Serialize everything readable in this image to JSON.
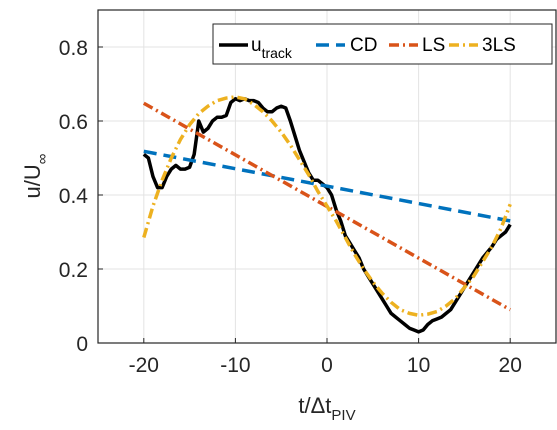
{
  "chart_data": {
    "type": "line",
    "xlim": [
      -25,
      25
    ],
    "ylim": [
      0,
      0.9
    ],
    "xticks": [
      -20,
      -10,
      0,
      10,
      20
    ],
    "yticks": [
      0,
      0.2,
      0.4,
      0.6,
      0.8
    ],
    "xtick_labels": [
      "-20",
      "-10",
      "0",
      "10",
      "20"
    ],
    "ytick_labels": [
      "0",
      "0.2",
      "0.4",
      "0.6",
      "0.8"
    ],
    "xlabel": {
      "main": "t/Δt",
      "sub": "PIV"
    },
    "ylabel": {
      "main": "u/U",
      "sub": "∞"
    },
    "grid": true,
    "legend_position": "top-right",
    "series": [
      {
        "name": "u",
        "name_sub": "track",
        "color": "#000000",
        "dash": "solid",
        "x": [
          -20,
          -19.5,
          -19,
          -18.5,
          -18,
          -17.5,
          -17,
          -16.5,
          -16,
          -15.5,
          -15,
          -14.5,
          -14,
          -13.5,
          -13,
          -12.5,
          -12,
          -11.5,
          -11,
          -10.5,
          -10,
          -9.5,
          -9,
          -8.5,
          -8,
          -7.5,
          -7,
          -6.5,
          -6,
          -5.5,
          -5,
          -4.5,
          -4,
          -3.5,
          -3,
          -2.5,
          -2,
          -1.5,
          -1,
          -0.5,
          0,
          0.5,
          1,
          1.5,
          2,
          2.5,
          3,
          3.5,
          4,
          4.5,
          5,
          5.5,
          6,
          6.5,
          7,
          7.5,
          8,
          8.5,
          9,
          9.5,
          10,
          10.5,
          11,
          11.5,
          12,
          12.5,
          13,
          13.5,
          14,
          14.5,
          15,
          15.5,
          16,
          16.5,
          17,
          17.5,
          18,
          18.5,
          19,
          19.5,
          20
        ],
        "y": [
          0.51,
          0.5,
          0.45,
          0.42,
          0.42,
          0.45,
          0.47,
          0.48,
          0.47,
          0.47,
          0.475,
          0.51,
          0.6,
          0.57,
          0.58,
          0.6,
          0.61,
          0.61,
          0.615,
          0.65,
          0.66,
          0.655,
          0.66,
          0.655,
          0.655,
          0.65,
          0.635,
          0.625,
          0.625,
          0.635,
          0.64,
          0.635,
          0.6,
          0.56,
          0.52,
          0.49,
          0.46,
          0.44,
          0.44,
          0.43,
          0.42,
          0.4,
          0.36,
          0.33,
          0.29,
          0.27,
          0.25,
          0.23,
          0.2,
          0.18,
          0.16,
          0.14,
          0.12,
          0.1,
          0.08,
          0.07,
          0.06,
          0.05,
          0.04,
          0.035,
          0.03,
          0.035,
          0.05,
          0.06,
          0.065,
          0.07,
          0.08,
          0.09,
          0.11,
          0.13,
          0.15,
          0.17,
          0.19,
          0.21,
          0.23,
          0.245,
          0.26,
          0.28,
          0.29,
          0.3,
          0.32
        ]
      },
      {
        "name": "CD",
        "color": "#0072BD",
        "dash": "dashed",
        "x": [
          -20,
          20
        ],
        "y": [
          0.518,
          0.33
        ]
      },
      {
        "name": "LS",
        "color": "#D95319",
        "dash": "dashdot",
        "x": [
          -20,
          20
        ],
        "y": [
          0.648,
          0.09
        ]
      },
      {
        "name": "3LS",
        "color": "#EDB120",
        "dash": "dashdot",
        "x": [
          -20,
          -19,
          -18,
          -17,
          -16,
          -15,
          -14,
          -13,
          -12,
          -11,
          -10,
          -9,
          -8,
          -7,
          -6,
          -5,
          -4,
          -3,
          -2,
          -1,
          0,
          1,
          2,
          3,
          4,
          5,
          6,
          7,
          8,
          9,
          10,
          11,
          12,
          13,
          14,
          15,
          16,
          17,
          18,
          19,
          20
        ],
        "y": [
          0.285,
          0.37,
          0.44,
          0.5,
          0.55,
          0.59,
          0.62,
          0.64,
          0.655,
          0.662,
          0.665,
          0.66,
          0.645,
          0.625,
          0.6,
          0.57,
          0.535,
          0.495,
          0.455,
          0.41,
          0.37,
          0.33,
          0.285,
          0.24,
          0.2,
          0.165,
          0.135,
          0.11,
          0.09,
          0.08,
          0.075,
          0.078,
          0.085,
          0.1,
          0.12,
          0.15,
          0.18,
          0.22,
          0.26,
          0.31,
          0.375
        ]
      }
    ]
  }
}
